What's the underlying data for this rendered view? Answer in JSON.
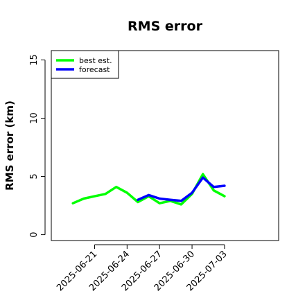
{
  "chart_data": {
    "type": "line",
    "title": "RMS error",
    "xlabel": "",
    "ylabel": "RMS error (km)",
    "x_type": "date",
    "xlim": [
      "2025-06-17",
      "2025-07-08"
    ],
    "ylim": [
      -0.5,
      15.8
    ],
    "x_ticks": [
      "2025-06-21",
      "2025-06-24",
      "2025-06-27",
      "2025-06-30",
      "2025-07-03"
    ],
    "y_ticks": [
      0,
      5,
      10,
      15
    ],
    "grid": false,
    "legend_position": "top-left",
    "series": [
      {
        "name": "best est.",
        "color": "#00ff00",
        "points": [
          {
            "x": "2025-06-19",
            "y": 2.7
          },
          {
            "x": "2025-06-20",
            "y": 3.1
          },
          {
            "x": "2025-06-21",
            "y": 3.3
          },
          {
            "x": "2025-06-22",
            "y": 3.5
          },
          {
            "x": "2025-06-23",
            "y": 4.1
          },
          {
            "x": "2025-06-24",
            "y": 3.6
          },
          {
            "x": "2025-06-25",
            "y": 2.8
          },
          {
            "x": "2025-06-26",
            "y": 3.3
          },
          {
            "x": "2025-06-27",
            "y": 2.7
          },
          {
            "x": "2025-06-28",
            "y": 2.9
          },
          {
            "x": "2025-06-29",
            "y": 2.6
          },
          {
            "x": "2025-06-30",
            "y": 3.5
          },
          {
            "x": "2025-07-01",
            "y": 5.2
          },
          {
            "x": "2025-07-02",
            "y": 3.8
          },
          {
            "x": "2025-07-03",
            "y": 3.3
          }
        ]
      },
      {
        "name": "forecast",
        "color": "#0000ff",
        "points": [
          {
            "x": "2025-06-25",
            "y": 3.0
          },
          {
            "x": "2025-06-26",
            "y": 3.4
          },
          {
            "x": "2025-06-27",
            "y": 3.1
          },
          {
            "x": "2025-06-28",
            "y": 3.0
          },
          {
            "x": "2025-06-29",
            "y": 2.9
          },
          {
            "x": "2025-06-30",
            "y": 3.6
          },
          {
            "x": "2025-07-01",
            "y": 4.9
          },
          {
            "x": "2025-07-02",
            "y": 4.1
          },
          {
            "x": "2025-07-03",
            "y": 4.2
          }
        ]
      }
    ]
  }
}
